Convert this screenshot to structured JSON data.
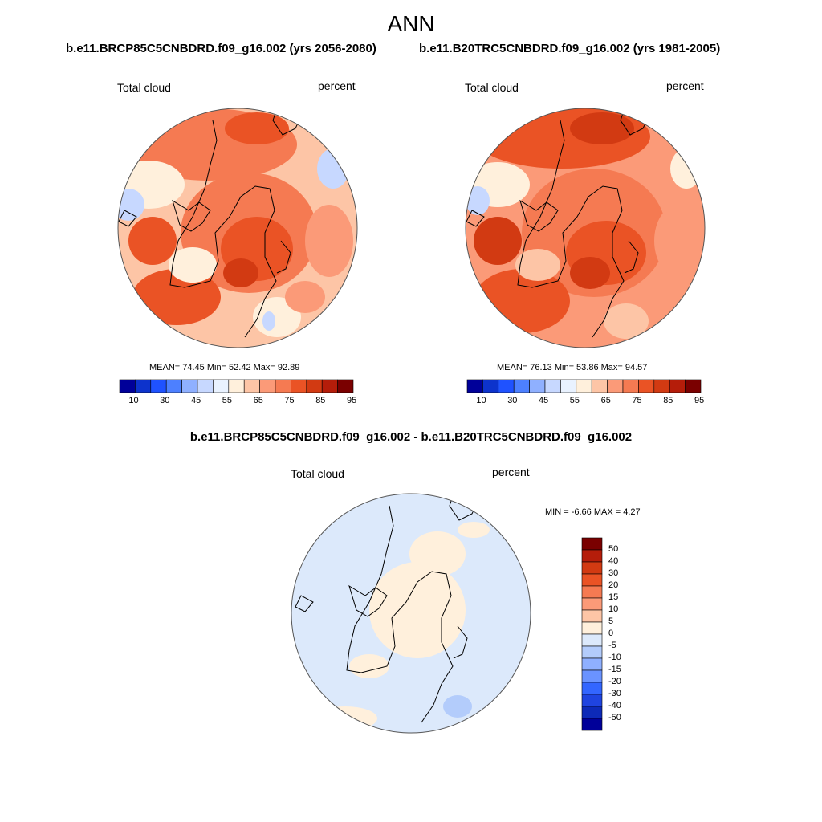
{
  "title": "ANN",
  "panels": [
    {
      "title": "b.e11.BRCP85C5CNBDRD.f09_g16.002 (yrs 2056-2080)",
      "left_label": "Total cloud",
      "right_label": "percent",
      "stats": "MEAN=  74.45  Min=  52.42  Max=  92.89"
    },
    {
      "title": "b.e11.B20TRC5CNBDRD.f09_g16.002 (yrs 1981-2005)",
      "left_label": "Total cloud",
      "right_label": "percent",
      "stats": "MEAN=  76.13  Min=  53.86  Max=  94.57"
    }
  ],
  "colorbar_main": {
    "labels": [
      "10",
      "30",
      "45",
      "55",
      "65",
      "75",
      "85",
      "95"
    ],
    "colors": [
      "#000099",
      "#0d33cc",
      "#1f52ff",
      "#4d80ff",
      "#8fb0ff",
      "#c7d8ff",
      "#e9f2ff",
      "#fff0dc",
      "#fdc5a6",
      "#fb9a78",
      "#f57a52",
      "#ea5325",
      "#d23a12",
      "#b51d0a",
      "#7a0000"
    ]
  },
  "diff": {
    "title": "b.e11.BRCP85C5CNBDRD.f09_g16.002 - b.e11.B20TRC5CNBDRD.f09_g16.002",
    "left_label": "Total cloud",
    "right_label": "percent",
    "stats": "MIN =  -6.66 MAX =   4.27",
    "colorbar": {
      "labels": [
        "50",
        "40",
        "30",
        "20",
        "15",
        "10",
        "5",
        "0",
        "-5",
        "-10",
        "-15",
        "-20",
        "-30",
        "-40",
        "-50"
      ],
      "colors": [
        "#7a0000",
        "#b51d0a",
        "#d23a12",
        "#ea5325",
        "#f57a52",
        "#fb9a78",
        "#fdc5a6",
        "#fff0dc",
        "#dce9fb",
        "#b3ccfb",
        "#8fb0ff",
        "#6a93ff",
        "#3366ff",
        "#1f44e0",
        "#0d2ab8",
        "#000099"
      ]
    }
  }
}
